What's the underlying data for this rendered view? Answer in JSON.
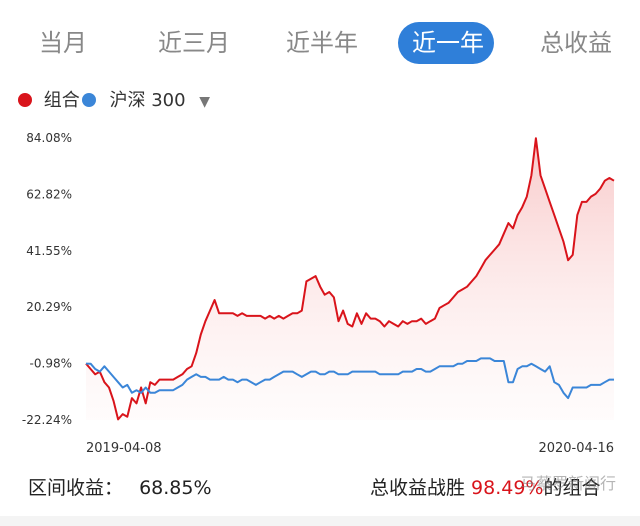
{
  "tabs": [
    {
      "label": "当月",
      "active": false
    },
    {
      "label": "近三月",
      "active": false
    },
    {
      "label": "近半年",
      "active": false
    },
    {
      "label": "近一年",
      "active": true
    },
    {
      "label": "总收益",
      "active": false
    }
  ],
  "legend": {
    "portfolio": "组合",
    "benchmark": "沪深 300",
    "portfolio_color": "#d9141b",
    "benchmark_color": "#3b86d8",
    "caret": "▼"
  },
  "footer": {
    "range_label": "区间收益：",
    "range_value": "68.85%",
    "win_prefix": "总收益战胜",
    "win_value": "98.49%",
    "win_suffix": "的组合"
  },
  "watermark": "马蔡罗新闻行",
  "chart_data": {
    "type": "line",
    "x_start": "2019-04-08",
    "x_end": "2020-04-16",
    "x_tick_labels": [
      "2019-04-08",
      "2020-04-16"
    ],
    "y_tick_labels": [
      "84.08%",
      "62.82%",
      "41.55%",
      "20.29%",
      "-0.98%",
      "-22.24%"
    ],
    "ylim": [
      -22.24,
      84.08
    ],
    "grid": false,
    "series": [
      {
        "name": "组合",
        "color": "#d9141b",
        "fill": true,
        "values": [
          -0.98,
          -3,
          -5,
          -4,
          -8,
          -10,
          -15,
          -22,
          -20,
          -21,
          -14,
          -16,
          -10,
          -16,
          -8,
          -9,
          -7,
          -7,
          -7,
          -7,
          -6,
          -5,
          -3,
          -2,
          3,
          10,
          15,
          19,
          23,
          18,
          18,
          18,
          18,
          17,
          18,
          17,
          17,
          17,
          17,
          16,
          17,
          16,
          17,
          16,
          17,
          18,
          18,
          19,
          30,
          31,
          32,
          28,
          25,
          26,
          24,
          15,
          19,
          14,
          13,
          18,
          14,
          18,
          16,
          16,
          15,
          13,
          15,
          14,
          13,
          15,
          14,
          15,
          15,
          16,
          14,
          15,
          16,
          20,
          21,
          22,
          24,
          26,
          27,
          28,
          30,
          32,
          35,
          38,
          40,
          42,
          44,
          48,
          52,
          50,
          55,
          58,
          62,
          70,
          84,
          70,
          65,
          60,
          55,
          50,
          45,
          38,
          40,
          55,
          60,
          60,
          62,
          63,
          65,
          68,
          69,
          68
        ]
      },
      {
        "name": "沪深 300",
        "color": "#3b86d8",
        "fill": false,
        "values": [
          -0.98,
          -1,
          -3,
          -4,
          -2,
          -4,
          -6,
          -8,
          -10,
          -9,
          -12,
          -11,
          -12,
          -10,
          -12,
          -12,
          -11,
          -11,
          -11,
          -11,
          -10,
          -9,
          -7,
          -6,
          -5,
          -6,
          -6,
          -7,
          -7,
          -7,
          -6,
          -7,
          -7,
          -8,
          -7,
          -7,
          -8,
          -9,
          -8,
          -7,
          -7,
          -6,
          -5,
          -4,
          -4,
          -4,
          -5,
          -6,
          -5,
          -4,
          -4,
          -5,
          -5,
          -4,
          -4,
          -5,
          -5,
          -5,
          -4,
          -4,
          -4,
          -4,
          -4,
          -4,
          -5,
          -5,
          -5,
          -5,
          -5,
          -4,
          -4,
          -4,
          -3,
          -3,
          -4,
          -4,
          -3,
          -2,
          -2,
          -2,
          -2,
          -1,
          -1,
          0,
          0,
          0,
          1,
          1,
          1,
          0,
          0,
          0,
          -8,
          -8,
          -3,
          -2,
          -2,
          -1,
          -2,
          -3,
          -4,
          -2,
          -8,
          -9,
          -12,
          -14,
          -10,
          -10,
          -10,
          -10,
          -9,
          -9,
          -9,
          -8,
          -7,
          -7
        ]
      }
    ]
  }
}
